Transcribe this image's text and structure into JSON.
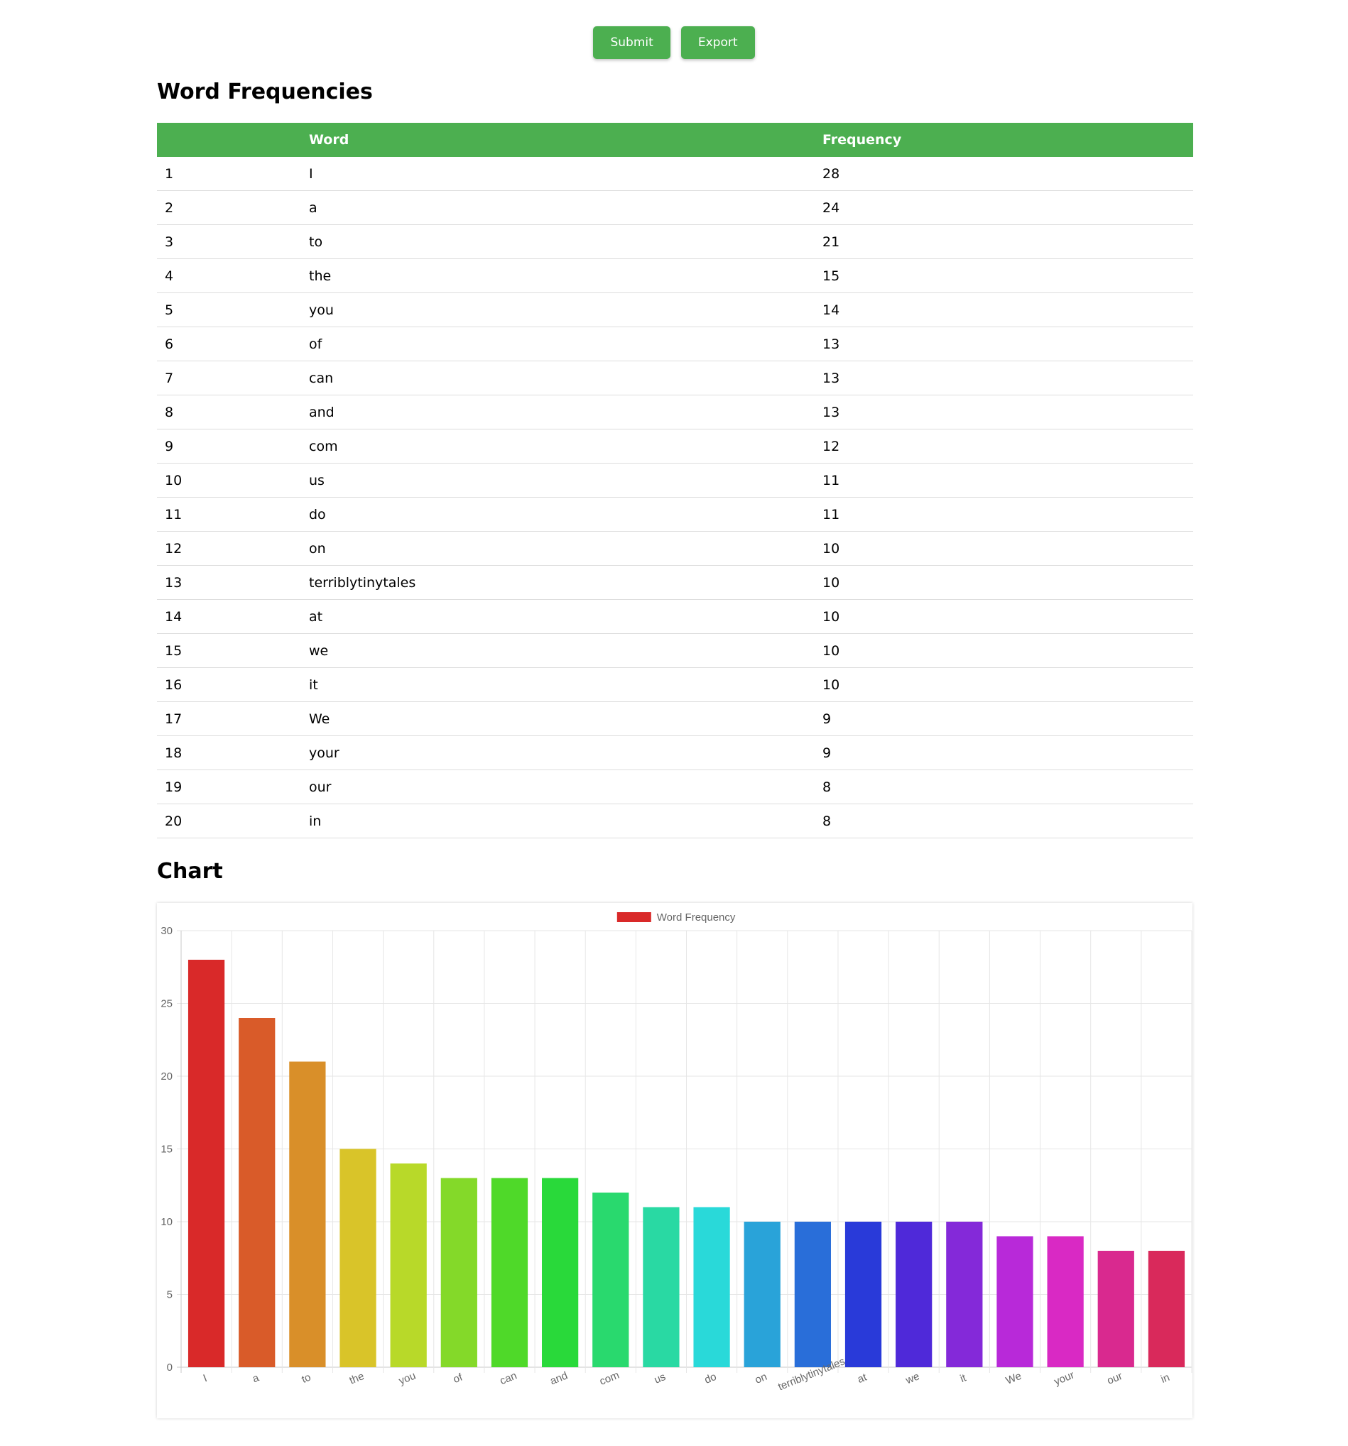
{
  "actions": {
    "submit_label": "Submit",
    "export_label": "Export",
    "button_color": "#4caf50"
  },
  "sections": {
    "table_title": "Word Frequencies",
    "chart_title": "Chart"
  },
  "table": {
    "headers": [
      "",
      "Word",
      "Frequency"
    ],
    "rows": [
      [
        "1",
        "I",
        "28"
      ],
      [
        "2",
        "a",
        "24"
      ],
      [
        "3",
        "to",
        "21"
      ],
      [
        "4",
        "the",
        "15"
      ],
      [
        "5",
        "you",
        "14"
      ],
      [
        "6",
        "of",
        "13"
      ],
      [
        "7",
        "can",
        "13"
      ],
      [
        "8",
        "and",
        "13"
      ],
      [
        "9",
        "com",
        "12"
      ],
      [
        "10",
        "us",
        "11"
      ],
      [
        "11",
        "do",
        "11"
      ],
      [
        "12",
        "on",
        "10"
      ],
      [
        "13",
        "terriblytinytales",
        "10"
      ],
      [
        "14",
        "at",
        "10"
      ],
      [
        "15",
        "we",
        "10"
      ],
      [
        "16",
        "it",
        "10"
      ],
      [
        "17",
        "We",
        "9"
      ],
      [
        "18",
        "your",
        "9"
      ],
      [
        "19",
        "our",
        "8"
      ],
      [
        "20",
        "in",
        "8"
      ]
    ]
  },
  "chart_data": {
    "type": "bar",
    "legend": "Word Frequency",
    "legend_color": "#d92929",
    "categories": [
      "I",
      "a",
      "to",
      "the",
      "you",
      "of",
      "can",
      "and",
      "com",
      "us",
      "do",
      "on",
      "terriblytinytales",
      "at",
      "we",
      "it",
      "We",
      "your",
      "our",
      "in"
    ],
    "values": [
      28,
      24,
      21,
      15,
      14,
      13,
      13,
      13,
      12,
      11,
      11,
      10,
      10,
      10,
      10,
      10,
      9,
      9,
      8,
      8
    ],
    "colors": [
      "#d92929",
      "#d95b29",
      "#d98f29",
      "#d9c429",
      "#b8d929",
      "#84d929",
      "#4fd929",
      "#29d93a",
      "#29d96e",
      "#29d9a3",
      "#29d9d9",
      "#29a3d9",
      "#296ed9",
      "#293ad9",
      "#4f29d9",
      "#8429d9",
      "#b829d9",
      "#d929c4",
      "#d9298f",
      "#d9295b"
    ],
    "ylim": [
      0,
      30
    ],
    "yticks": [
      0,
      5,
      10,
      15,
      20,
      25,
      30
    ],
    "grid": true,
    "legend_position": "top"
  }
}
